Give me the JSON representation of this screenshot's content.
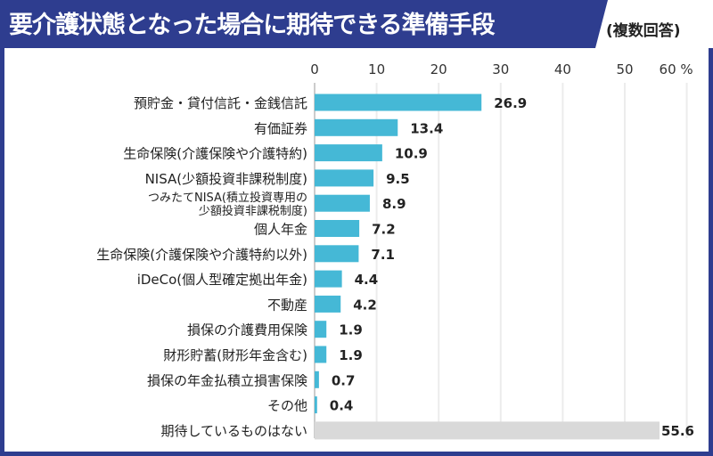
{
  "header": {
    "title": "要介護状態となった場合に期待できる準備手段",
    "note": "(複数回答)"
  },
  "colors": {
    "frame": "#2e3d8f",
    "bar": "#45b8d6",
    "bar_none": "#d9d9d9",
    "grid": "#ececec"
  },
  "chart_data": {
    "type": "bar",
    "orientation": "horizontal",
    "title": "要介護状態となった場合に期待できる準備手段",
    "xlim": [
      0,
      60
    ],
    "ticks": [
      0,
      10,
      20,
      30,
      40,
      50,
      60
    ],
    "tick_labels": [
      "0",
      "10",
      "20",
      "30",
      "40",
      "50",
      "60 %"
    ],
    "unit": "%",
    "grid": true,
    "categories": [
      "預貯金・貸付信託・金銭信託",
      "有価証券",
      "生命保険(介護保険や介護特約)",
      "NISA(少額投資非課税制度)",
      "つみたてNISA(積立投資専用の\n少額投資非課税制度)",
      "個人年金",
      "生命保険(介護保険や介護特約以外)",
      "iDeCo(個人型確定拠出年金)",
      "不動産",
      "損保の介護費用保険",
      "財形貯蓄(財形年金含む)",
      "損保の年金払積立損害保険",
      "その他",
      "期待しているものはない"
    ],
    "values": [
      26.9,
      13.4,
      10.9,
      9.5,
      8.9,
      7.2,
      7.1,
      4.4,
      4.2,
      1.9,
      1.9,
      0.7,
      0.4,
      55.6
    ],
    "labels": [
      "26.9",
      "13.4",
      "10.9",
      "9.5",
      "8.9",
      "7.2",
      "7.1",
      "4.4",
      "4.2",
      "1.9",
      "1.9",
      "0.7",
      "0.4",
      "55.6"
    ]
  }
}
